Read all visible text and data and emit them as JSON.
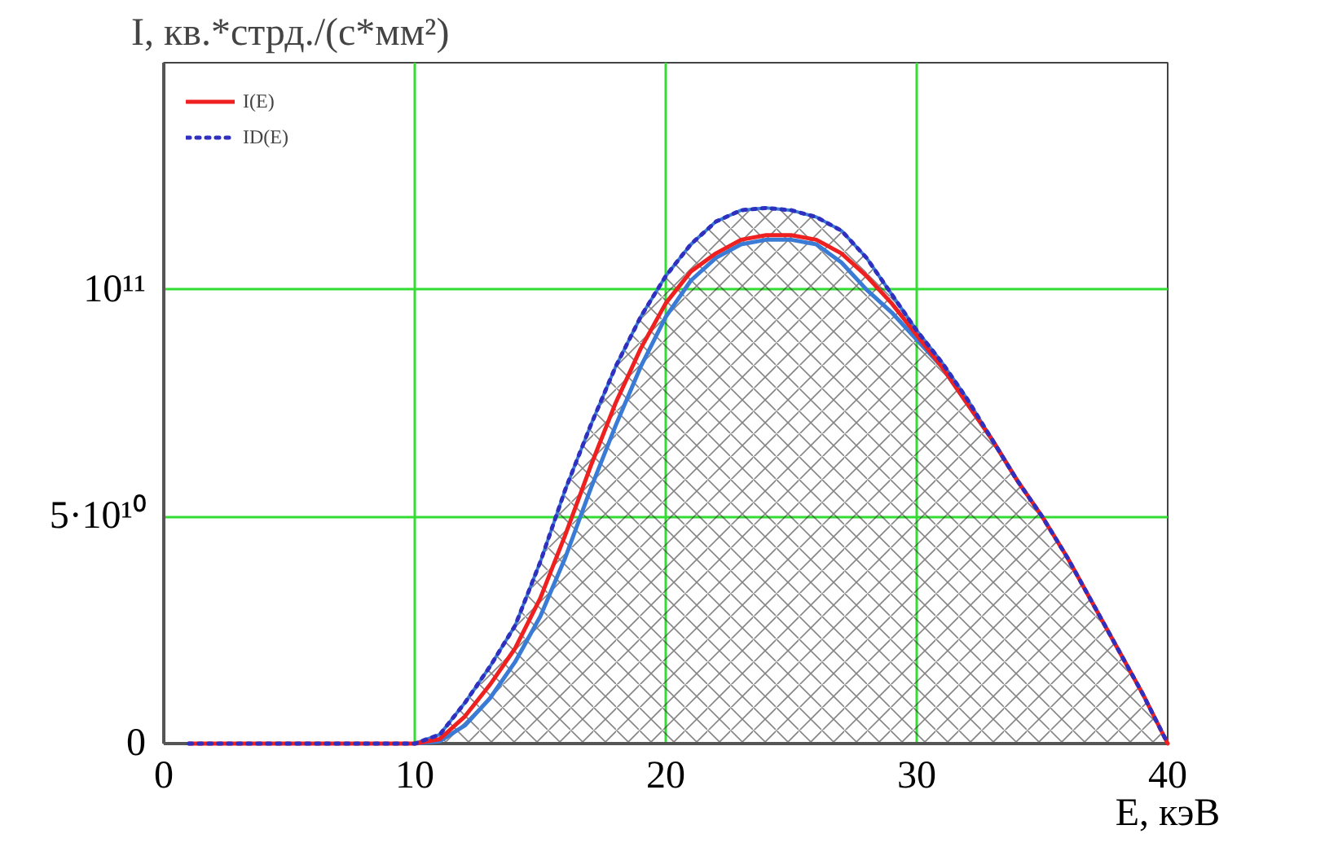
{
  "chart_data": {
    "type": "line",
    "xlabel": "E, кэВ",
    "ylabel": "I, кв.*стрд./(с*мм²)",
    "xlim": [
      0,
      40
    ],
    "ylim": [
      0,
      150000000000.0
    ],
    "xticks": [
      0,
      10,
      20,
      30,
      40
    ],
    "yticks": [
      {
        "value": 0,
        "label": "0"
      },
      {
        "value": 50000000000.0,
        "label": "5·10¹⁰"
      },
      {
        "value": 100000000000.0,
        "label": "10¹¹"
      }
    ],
    "grid": true,
    "legend": "top left",
    "series": [
      {
        "type": "area",
        "color": "#3a7bd5",
        "x": [
          10,
          11,
          12,
          13,
          14,
          15,
          16,
          17,
          18,
          19,
          20,
          21,
          22,
          23,
          24,
          25,
          26,
          27,
          28,
          29,
          30,
          31,
          32,
          33,
          34,
          35,
          36,
          37,
          38,
          39,
          40
        ],
        "values": [
          0,
          2000000000.0,
          9000000000.0,
          17000000000.0,
          26000000000.0,
          40000000000.0,
          56000000000.0,
          70000000000.0,
          83000000000.0,
          94000000000.0,
          103000000000.0,
          110000000000.0,
          115000000000.0,
          117500000000.0,
          118000000000.0,
          117500000000.0,
          116000000000.0,
          113000000000.0,
          107000000000.0,
          99000000000.0,
          91000000000.0,
          84000000000.0,
          76000000000.0,
          67000000000.0,
          58000000000.0,
          50000000000.0,
          41000000000.0,
          31000000000.0,
          21000000000.0,
          11000000000.0,
          0
        ]
      },
      {
        "color": "#3a7bd5",
        "x": [
          10,
          11,
          12,
          13,
          14,
          15,
          16,
          17,
          18,
          19,
          20,
          21,
          22,
          23,
          24,
          25,
          26,
          27,
          28,
          29,
          30,
          31,
          32,
          33,
          34
        ],
        "values": [
          0,
          500000000.0,
          4000000000.0,
          10000000000.0,
          18000000000.0,
          28000000000.0,
          41000000000.0,
          56000000000.0,
          70000000000.0,
          83000000000.0,
          94000000000.0,
          102000000000.0,
          107000000000.0,
          110000000000.0,
          111000000000.0,
          111000000000.0,
          110000000000.0,
          106000000000.0,
          100000000000.0,
          95000000000.0,
          89000000000.0,
          83000000000.0,
          75000000000.0,
          67000000000.0,
          58000000000.0
        ]
      },
      {
        "name": "I(E)",
        "color": "#ee2020",
        "line_style": "solid",
        "x": [
          1,
          10,
          11,
          12,
          13,
          14,
          15,
          16,
          17,
          18,
          19,
          20,
          21,
          22,
          23,
          24,
          25,
          26,
          27,
          28,
          29,
          30,
          31,
          32,
          33,
          34,
          35,
          36,
          37,
          38,
          39,
          40
        ],
        "values": [
          0,
          0,
          1000000000.0,
          6000000000.0,
          13000000000.0,
          21000000000.0,
          32000000000.0,
          46000000000.0,
          61000000000.0,
          75000000000.0,
          87000000000.0,
          97000000000.0,
          104000000000.0,
          108000000000.0,
          111000000000.0,
          112000000000.0,
          112000000000.0,
          111000000000.0,
          108000000000.0,
          103000000000.0,
          97000000000.0,
          90000000000.0,
          83000000000.0,
          75000000000.0,
          67000000000.0,
          58000000000.0,
          50000000000.0,
          41000000000.0,
          31000000000.0,
          21000000000.0,
          11000000000.0,
          0
        ]
      },
      {
        "name": "ID(E)",
        "color": "#3030c0",
        "line_style": "dotted",
        "x": [
          1,
          10,
          11,
          12,
          13,
          14,
          15,
          16,
          17,
          18,
          19,
          20,
          21,
          22,
          23,
          24,
          25,
          26,
          27,
          28,
          29,
          30,
          31,
          32,
          33,
          34,
          35,
          36,
          37,
          38,
          39,
          40
        ],
        "values": [
          0,
          0,
          2000000000.0,
          9000000000.0,
          17000000000.0,
          26000000000.0,
          40000000000.0,
          56000000000.0,
          70000000000.0,
          83000000000.0,
          94000000000.0,
          103000000000.0,
          110000000000.0,
          115000000000.0,
          117500000000.0,
          118000000000.0,
          117500000000.0,
          116000000000.0,
          113000000000.0,
          107000000000.0,
          99000000000.0,
          91000000000.0,
          84000000000.0,
          76000000000.0,
          67000000000.0,
          58000000000.0,
          50000000000.0,
          41000000000.0,
          31000000000.0,
          21000000000.0,
          11000000000.0,
          0
        ]
      }
    ]
  }
}
